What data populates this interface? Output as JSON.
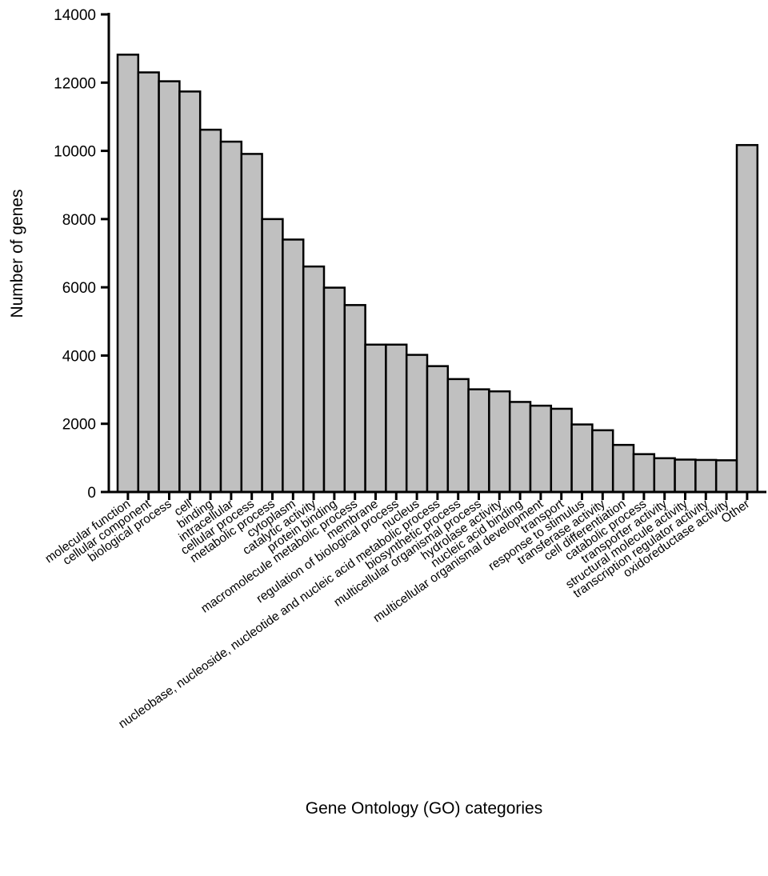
{
  "chart_data": {
    "type": "bar",
    "categories": [
      "molecular function",
      "cellular component",
      "biological process",
      "cell",
      "binding",
      "intracellular",
      "cellular process",
      "metabolic process",
      "cytoplasm",
      "catalytic activity",
      "protein binding",
      "macromolecule metabolic process",
      "membrane",
      "regulation of biological process",
      "nucleus",
      "nucleobase, nucleoside, nucleotide and nucleic acid metabolic process",
      "biosynthetic process",
      "multicellular organismal process",
      "hydrolase activity",
      "nucleic acid binding",
      "multicellular organismal development",
      "transport",
      "response to stimulus",
      "transferase activity",
      "cell differentiation",
      "catabolic process",
      "transporter activity",
      "structural molecule activity",
      "transcription regulator activity",
      "oxidoreductase activity",
      "Other"
    ],
    "values": [
      12820,
      12300,
      12040,
      11740,
      10620,
      10270,
      9910,
      8000,
      7400,
      6610,
      5990,
      5480,
      4320,
      4320,
      4020,
      3690,
      3310,
      3010,
      2950,
      2640,
      2530,
      2440,
      1980,
      1810,
      1380,
      1110,
      990,
      950,
      940,
      930,
      10170
    ],
    "xlabel": "Gene Ontology (GO) categories",
    "ylabel": "Number of genes",
    "ylim": [
      0,
      14000
    ],
    "yticks": [
      0,
      2000,
      4000,
      6000,
      8000,
      10000,
      12000,
      14000
    ],
    "grid": false,
    "legend": "none",
    "colors": {
      "bar_fill": "#c0c0c0",
      "bar_stroke": "#000000",
      "axis": "#000000"
    }
  }
}
